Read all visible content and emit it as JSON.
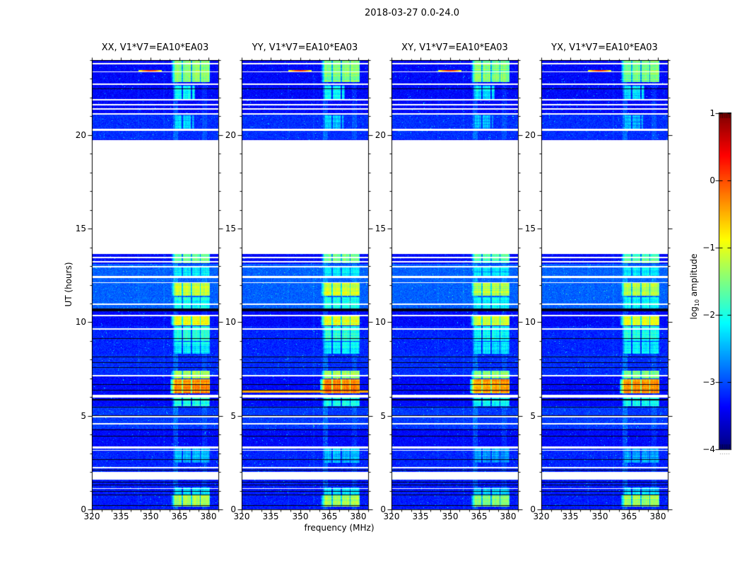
{
  "chart_data": {
    "type": "heatmap",
    "title": "2018-03-27 0.0-24.0",
    "xlabel": "frequency (MHz)",
    "ylabel": "UT (hours)",
    "x_range": [
      320,
      385
    ],
    "y_range": [
      0,
      24
    ],
    "x_ticks": [
      {
        "v": 320,
        "label": "320"
      },
      {
        "v": 335,
        "label": "335"
      },
      {
        "v": 350,
        "label": "350"
      },
      {
        "v": 365,
        "label": "365"
      },
      {
        "v": 380,
        "label": "380"
      }
    ],
    "x_minor_step": 5,
    "y_ticks": [
      {
        "v": 0,
        "label": "0"
      },
      {
        "v": 5,
        "label": "5"
      },
      {
        "v": 10,
        "label": "10"
      },
      {
        "v": 15,
        "label": "15"
      },
      {
        "v": 20,
        "label": "20"
      }
    ],
    "y_minor_step": 1,
    "panels": [
      {
        "label": "XX, V1*V7=EA10*EA03",
        "seed": 11,
        "value_offset": 0
      },
      {
        "label": "YY, V1*V7=EA10*EA03",
        "seed": 22,
        "value_offset": 0
      },
      {
        "label": "XY, V1*V7=EA10*EA03",
        "seed": 33,
        "value_offset": -0.12
      },
      {
        "label": "YX, V1*V7=EA10*EA03",
        "seed": 44,
        "value_offset": -0.08
      }
    ],
    "colorbar": {
      "label_prefix": "log",
      "label_sub": "10",
      "label_suffix": " amplitude",
      "vmin": -4,
      "vmax": 1,
      "colormap": "jet",
      "ticks": [
        {
          "v": 1,
          "label": "1"
        },
        {
          "v": 0,
          "label": "0"
        },
        {
          "v": -1,
          "label": "−1"
        },
        {
          "v": -2,
          "label": "−2"
        },
        {
          "v": -3,
          "label": "−3"
        },
        {
          "v": -4,
          "label": "−4"
        }
      ]
    },
    "spectrogram": {
      "background_value": -3.35,
      "noise_sigma": 0.18,
      "bg_bands": [
        {
          "ut": [
            10.7,
            13.1
          ],
          "v": -2.9
        },
        {
          "ut": [
            8.3,
            9.8
          ],
          "v": -3.2
        },
        {
          "ut": [
            7.2,
            8.3
          ],
          "v": -3.15
        },
        {
          "ut": [
            4.3,
            5.5
          ],
          "v": -3.1
        },
        {
          "ut": [
            2.0,
            3.35
          ],
          "v": -3.2
        },
        {
          "ut": [
            19.75,
            21.1
          ],
          "v": -3.15
        },
        {
          "ut": [
            0.0,
            1.6
          ],
          "v": -3.25
        }
      ],
      "white_gaps": [
        [
          13.72,
          19.72
        ],
        [
          1.59,
          2.0
        ]
      ],
      "white_stripes": [
        [
          23.8,
          2
        ],
        [
          23.36,
          1
        ],
        [
          22.7,
          2
        ],
        [
          21.87,
          2
        ],
        [
          21.62,
          2
        ],
        [
          21.38,
          2
        ],
        [
          21.12,
          2
        ],
        [
          20.28,
          3
        ],
        [
          13.68,
          2
        ],
        [
          13.45,
          2
        ],
        [
          13.21,
          2
        ],
        [
          12.96,
          2
        ],
        [
          12.42,
          3
        ],
        [
          12.12,
          1
        ],
        [
          10.96,
          2
        ],
        [
          10.36,
          2
        ],
        [
          9.64,
          2
        ],
        [
          7.15,
          2
        ],
        [
          6.06,
          4
        ],
        [
          4.95,
          2
        ],
        [
          4.57,
          2
        ],
        [
          3.32,
          3
        ],
        [
          3.14,
          1
        ],
        [
          2.22,
          2
        ],
        [
          1.12,
          1
        ]
      ],
      "black_stripes": [
        [
          22.46,
          1
        ],
        [
          10.64,
          4
        ],
        [
          9.12,
          1
        ],
        [
          8.13,
          1
        ],
        [
          7.86,
          1
        ],
        [
          7.56,
          1
        ],
        [
          6.68,
          1
        ],
        [
          6.38,
          1
        ],
        [
          5.86,
          2
        ],
        [
          5.48,
          1
        ],
        [
          5.02,
          1
        ],
        [
          4.27,
          1
        ],
        [
          3.9,
          1
        ],
        [
          2.68,
          1
        ],
        [
          2.1,
          1
        ],
        [
          1.44,
          1
        ],
        [
          1.3,
          1
        ],
        [
          0.95,
          1
        ],
        [
          0.76,
          1
        ],
        [
          0.19,
          1
        ]
      ],
      "rfi_columns": [
        {
          "f": [
            361.6,
            364.4
          ],
          "dv": 0.45
        },
        {
          "f": [
            376.8,
            379.2
          ],
          "dv": 0.25
        },
        {
          "f": [
            356.5,
            357.5
          ],
          "dv": 0.15
        },
        {
          "f": [
            343.5,
            344.5
          ],
          "dv": 0.12
        }
      ],
      "blob_freq_default": [
        361.8,
        380.6
      ],
      "blob_column_gaps": [
        [
          366.2,
          366.9
        ],
        [
          370.8,
          371.5
        ],
        [
          375.4,
          376.1
        ]
      ],
      "blobs": [
        {
          "ut": [
            22.82,
            24.0
          ],
          "v": -1.45
        },
        {
          "ut": [
            21.9,
            22.65
          ],
          "f": [
            362,
            373
          ],
          "v": -2.15
        },
        {
          "ut": [
            20.35,
            21.05
          ],
          "f": [
            362,
            372.5
          ],
          "v": -2.4
        },
        {
          "ut": [
            13.15,
            13.72
          ],
          "v": -1.6
        },
        {
          "ut": [
            12.35,
            12.98
          ],
          "v": -2.2
        },
        {
          "ut": [
            11.4,
            12.08
          ],
          "v": -1.15
        },
        {
          "ut": [
            10.75,
            11.32
          ],
          "v": -2.05
        },
        {
          "ut": [
            9.82,
            10.38
          ],
          "v": -1.0
        },
        {
          "ut": [
            9.0,
            9.78
          ],
          "v": -1.95
        },
        {
          "ut": [
            8.3,
            8.95
          ],
          "v": -2.15
        },
        {
          "ut": [
            6.98,
            7.42
          ],
          "v": -1.35
        },
        {
          "ut": [
            6.2,
            6.96
          ],
          "v": -0.3
        },
        {
          "ut": [
            5.5,
            6.12
          ],
          "v": -2.0
        },
        {
          "ut": [
            2.5,
            3.3
          ],
          "v": -2.5
        },
        {
          "ut": [
            0.15,
            0.78
          ],
          "v": -1.3
        },
        {
          "ut": [
            0.78,
            1.18
          ],
          "v": -2.25
        }
      ],
      "streaks": [
        {
          "ut": 23.42,
          "h": 2,
          "f": [
            344,
            356
          ],
          "v": 0.15,
          "taper": true,
          "panels": [
            0,
            1,
            2,
            3
          ]
        },
        {
          "ut": 6.3,
          "h": 3,
          "f": [
            320,
            385
          ],
          "v": -0.45,
          "taper": false,
          "panels": [
            1
          ]
        }
      ]
    }
  }
}
